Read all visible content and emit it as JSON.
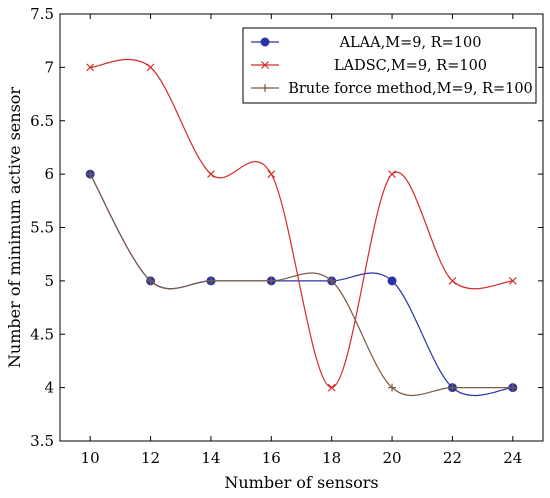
{
  "chart_data": {
    "type": "line",
    "xlabel": "Number of sensors",
    "ylabel": "Number of minimum active sensor",
    "x": [
      10,
      12,
      14,
      16,
      18,
      20,
      22,
      24
    ],
    "xlim": [
      9,
      25
    ],
    "ylim": [
      3.5,
      7.5
    ],
    "xticks": [
      10,
      12,
      14,
      16,
      18,
      20,
      22,
      24
    ],
    "yticks": [
      3.5,
      4,
      4.5,
      5,
      5.5,
      6,
      6.5,
      7,
      7.5
    ],
    "legend_position": "top-right",
    "grid": false,
    "smooth": true,
    "series": [
      {
        "name": "ALAA,M=9, R=100",
        "color": "#2b35a8",
        "marker": "circle",
        "values": [
          6,
          5,
          5,
          5,
          5,
          5,
          4,
          4
        ]
      },
      {
        "name": "LADSC,M=9, R=100",
        "color": "#d62b2b",
        "marker": "x",
        "values": [
          7,
          7,
          6,
          6,
          4,
          6,
          5,
          5
        ]
      },
      {
        "name": "Brute force method,M=9, R=100",
        "color": "#7a5c45",
        "marker": "plus",
        "values": [
          6,
          5,
          5,
          5,
          5,
          4,
          4,
          4
        ]
      }
    ]
  }
}
